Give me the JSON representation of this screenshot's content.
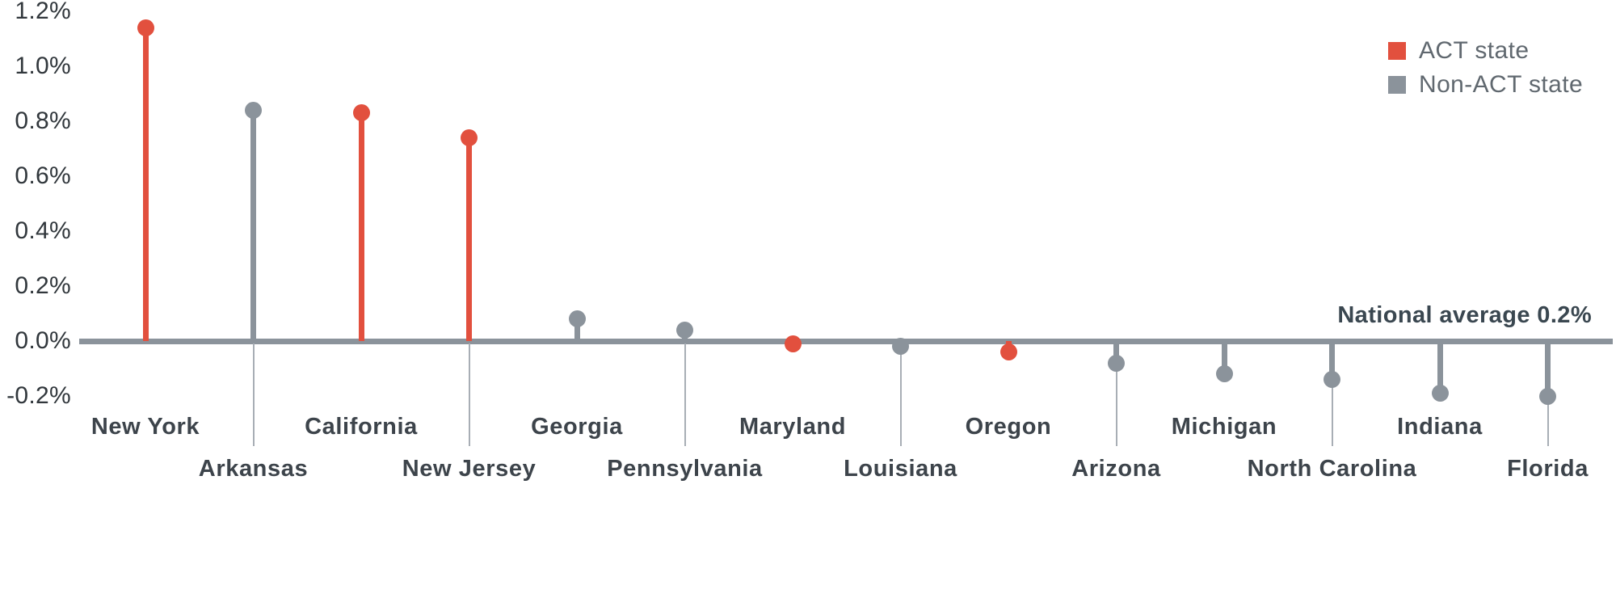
{
  "chart_data": {
    "type": "lollipop",
    "title": "",
    "xlabel": "",
    "ylabel": "",
    "ylim": [
      -0.2,
      1.2
    ],
    "grid": false,
    "legend_position": "top-right",
    "yticks": [
      "1.2%",
      "1.0%",
      "0.8%",
      "0.6%",
      "0.4%",
      "0.2%",
      "0.0%",
      "-0.2%"
    ],
    "categories": [
      "New York",
      "Arkansas",
      "California",
      "New Jersey",
      "Georgia",
      "Pennsylvania",
      "Maryland",
      "Louisiana",
      "Oregon",
      "Arizona",
      "Michigan",
      "North Carolina",
      "Indiana",
      "Florida"
    ],
    "values": [
      1.14,
      0.84,
      0.83,
      0.74,
      0.08,
      0.04,
      -0.01,
      -0.02,
      -0.04,
      -0.08,
      -0.12,
      -0.14,
      -0.19,
      -0.2
    ],
    "groups": [
      "ACT",
      "Non-ACT",
      "ACT",
      "ACT",
      "Non-ACT",
      "Non-ACT",
      "ACT",
      "Non-ACT",
      "ACT",
      "Non-ACT",
      "Non-ACT",
      "Non-ACT",
      "Non-ACT",
      "Non-ACT"
    ],
    "legend": [
      {
        "label": "ACT state",
        "group": "ACT",
        "color": "#e2503e"
      },
      {
        "label": "Non-ACT state",
        "group": "Non-ACT",
        "color": "#8b939b"
      }
    ],
    "annotation": "National average 0.2%",
    "colors": {
      "axis_line": "#8b939b",
      "act": "#e2503e",
      "non_act": "#8b939b",
      "tick_text": "#31373c",
      "label_text": "#3d444b",
      "annotation_text": "#3a4750",
      "legend_text": "#60686f"
    }
  }
}
